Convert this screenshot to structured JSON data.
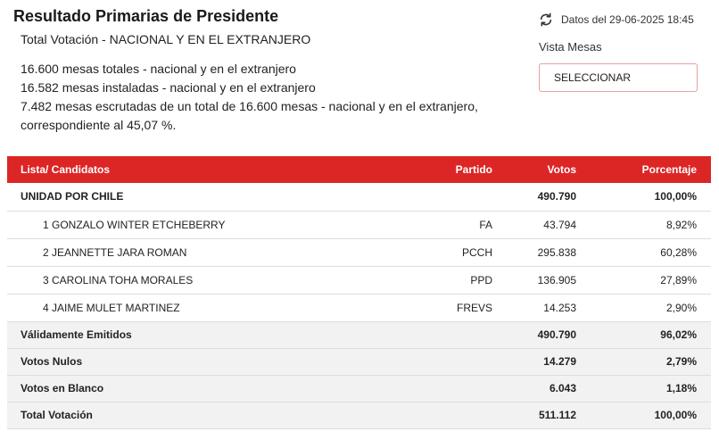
{
  "header": {
    "title": "Resultado Primarias de Presidente",
    "subtitle": "Total Votación - NACIONAL Y EN EL EXTRANJERO"
  },
  "summary": {
    "line1": "16.600 mesas totales - nacional y en el extranjero",
    "line2": "16.582 mesas instaladas - nacional y en el extranjero",
    "line3": "7.482 mesas escrutadas de un total de 16.600 mesas - nacional y en el extranjero,",
    "line4": "correspondiente al 45,07 %."
  },
  "meta": {
    "refresh_icon": "refresh-icon",
    "date": "Datos del 29-06-2025 18:45",
    "vista_label": "Vista Mesas",
    "select_label": "SELECCIONAR"
  },
  "colors": {
    "header_bg": "#dc2626",
    "totals_bg": "#f2f2f2"
  },
  "table": {
    "columns": [
      "Lista/ Candidatos",
      "Partido",
      "Votos",
      "Porcentaje"
    ],
    "group": {
      "name": "UNIDAD POR CHILE",
      "votes": "490.790",
      "pct": "100,00%"
    },
    "candidates": [
      {
        "name": "1 GONZALO WINTER ETCHEBERRY",
        "party": "FA",
        "votes": "43.794",
        "pct": "8,92%"
      },
      {
        "name": "2 JEANNETTE JARA ROMAN",
        "party": "PCCH",
        "votes": "295.838",
        "pct": "60,28%"
      },
      {
        "name": "3 CAROLINA TOHA MORALES",
        "party": "PPD",
        "votes": "136.905",
        "pct": "27,89%"
      },
      {
        "name": "4 JAIME MULET MARTINEZ",
        "party": "FREVS",
        "votes": "14.253",
        "pct": "2,90%"
      }
    ],
    "totals": [
      {
        "label": "Válidamente Emitidos",
        "votes": "490.790",
        "pct": "96,02%"
      },
      {
        "label": "Votos Nulos",
        "votes": "14.279",
        "pct": "2,79%"
      },
      {
        "label": "Votos en Blanco",
        "votes": "6.043",
        "pct": "1,18%"
      },
      {
        "label": "Total Votación",
        "votes": "511.112",
        "pct": "100,00%"
      }
    ]
  }
}
